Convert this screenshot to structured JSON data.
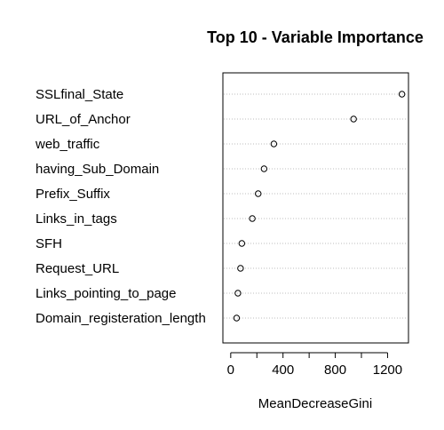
{
  "chart_data": {
    "type": "scatter",
    "title": "Top 10 - Variable Importance",
    "xlabel": "MeanDecreaseGini",
    "ylabel": "",
    "xlim": [
      -60,
      1360
    ],
    "xticks": [
      0,
      400,
      800,
      1200
    ],
    "grid": "dotted horizontal lines per variable",
    "categories": [
      "SSLfinal_State",
      "URL_of_Anchor",
      "web_traffic",
      "having_Sub_Domain",
      "Prefix_Suffix",
      "Links_in_tags",
      "SFH",
      "Request_URL",
      "Links_pointing_to_page",
      "Domain_registeration_length"
    ],
    "values": [
      1310,
      940,
      330,
      255,
      210,
      165,
      85,
      75,
      55,
      45
    ]
  }
}
